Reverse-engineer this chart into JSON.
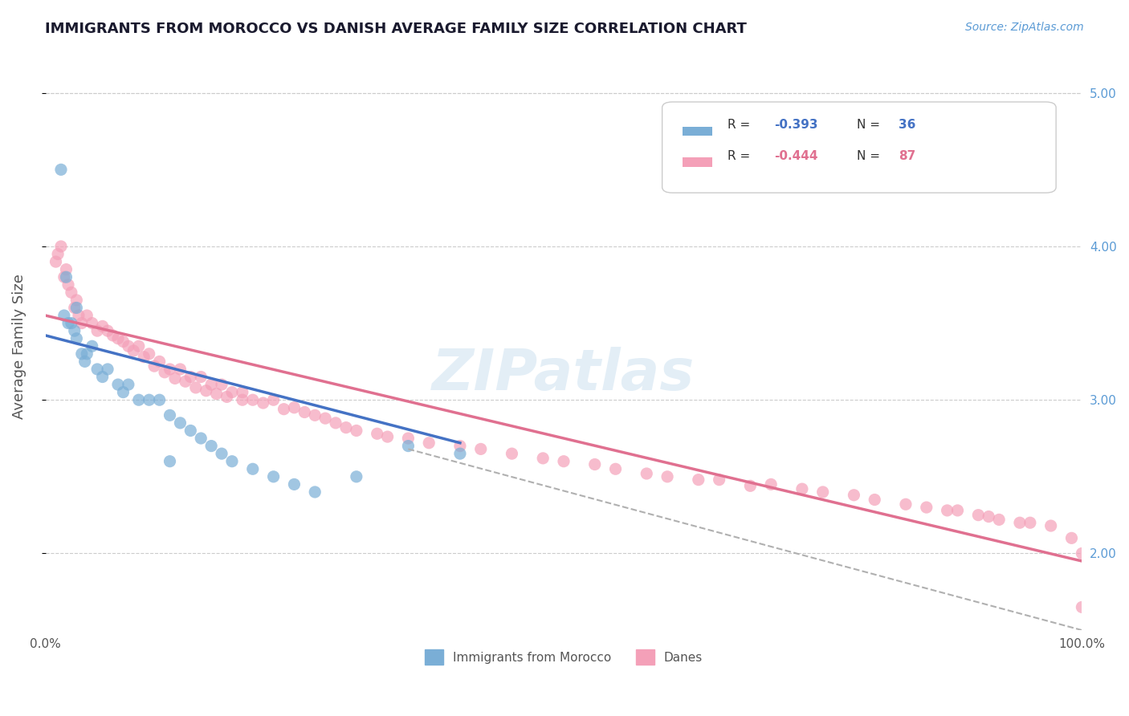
{
  "title": "IMMIGRANTS FROM MOROCCO VS DANISH AVERAGE FAMILY SIZE CORRELATION CHART",
  "source_text": "Source: ZipAtlas.com",
  "ylabel": "Average Family Size",
  "xlabel": "",
  "xlim": [
    0.0,
    100.0
  ],
  "ylim": [
    1.5,
    5.2
  ],
  "yticks": [
    2.0,
    3.0,
    4.0,
    5.0
  ],
  "xtick_labels": [
    "0.0%",
    "100.0%"
  ],
  "legend_entries": [
    {
      "label": "R = -0.393   N = 36",
      "color": "#aec6e8"
    },
    {
      "label": "R = -0.444   N = 87",
      "color": "#f4b8c8"
    }
  ],
  "legend_r_values": [
    "-0.393",
    "-0.444"
  ],
  "legend_n_values": [
    "36",
    "87"
  ],
  "watermark": "ZIPatlas",
  "blue_color": "#7aaed6",
  "pink_color": "#f4a0b8",
  "blue_line_color": "#4472c4",
  "pink_line_color": "#e07090",
  "dashed_line_color": "#b0b0b0",
  "title_color": "#1a1a2e",
  "axis_label_color": "#555555",
  "right_tick_color": "#5b9bd5",
  "background_color": "#ffffff",
  "grid_color": "#cccccc",
  "blue_scatter_x": [
    1.5,
    2.0,
    2.5,
    3.0,
    3.5,
    4.0,
    5.0,
    6.0,
    7.0,
    8.0,
    9.0,
    10.0,
    11.0,
    12.0,
    13.0,
    14.0,
    15.0,
    16.0,
    17.0,
    18.0,
    20.0,
    22.0,
    24.0,
    26.0,
    30.0,
    35.0,
    40.0,
    3.0,
    4.5,
    2.2,
    1.8,
    2.8,
    3.8,
    5.5,
    7.5,
    12.0
  ],
  "blue_scatter_y": [
    4.5,
    3.8,
    3.5,
    3.4,
    3.3,
    3.3,
    3.2,
    3.2,
    3.1,
    3.1,
    3.0,
    3.0,
    3.0,
    2.9,
    2.85,
    2.8,
    2.75,
    2.7,
    2.65,
    2.6,
    2.55,
    2.5,
    2.45,
    2.4,
    2.5,
    2.7,
    2.65,
    3.6,
    3.35,
    3.5,
    3.55,
    3.45,
    3.25,
    3.15,
    3.05,
    2.6
  ],
  "pink_scatter_x": [
    1.0,
    1.5,
    2.0,
    2.5,
    3.0,
    3.5,
    4.0,
    5.0,
    6.0,
    7.0,
    8.0,
    9.0,
    10.0,
    11.0,
    12.0,
    13.0,
    14.0,
    15.0,
    16.0,
    17.0,
    18.0,
    19.0,
    20.0,
    22.0,
    24.0,
    26.0,
    28.0,
    30.0,
    32.0,
    35.0,
    40.0,
    45.0,
    50.0,
    55.0,
    60.0,
    65.0,
    70.0,
    75.0,
    80.0,
    85.0,
    88.0,
    90.0,
    92.0,
    95.0,
    1.2,
    1.8,
    2.2,
    2.8,
    3.2,
    4.5,
    5.5,
    6.5,
    7.5,
    8.5,
    9.5,
    10.5,
    11.5,
    12.5,
    13.5,
    14.5,
    15.5,
    16.5,
    17.5,
    19.0,
    21.0,
    23.0,
    25.0,
    27.0,
    29.0,
    33.0,
    37.0,
    42.0,
    48.0,
    53.0,
    58.0,
    63.0,
    68.0,
    73.0,
    78.0,
    83.0,
    87.0,
    91.0,
    94.0,
    97.0,
    99.0,
    100.0,
    100.0
  ],
  "pink_scatter_y": [
    3.9,
    4.0,
    3.85,
    3.7,
    3.65,
    3.5,
    3.55,
    3.45,
    3.45,
    3.4,
    3.35,
    3.35,
    3.3,
    3.25,
    3.2,
    3.2,
    3.15,
    3.15,
    3.1,
    3.1,
    3.05,
    3.05,
    3.0,
    3.0,
    2.95,
    2.9,
    2.85,
    2.8,
    2.78,
    2.75,
    2.7,
    2.65,
    2.6,
    2.55,
    2.5,
    2.48,
    2.45,
    2.4,
    2.35,
    2.3,
    2.28,
    2.25,
    2.22,
    2.2,
    3.95,
    3.8,
    3.75,
    3.6,
    3.55,
    3.5,
    3.48,
    3.42,
    3.38,
    3.32,
    3.28,
    3.22,
    3.18,
    3.14,
    3.12,
    3.08,
    3.06,
    3.04,
    3.02,
    3.0,
    2.98,
    2.94,
    2.92,
    2.88,
    2.82,
    2.76,
    2.72,
    2.68,
    2.62,
    2.58,
    2.52,
    2.48,
    2.44,
    2.42,
    2.38,
    2.32,
    2.28,
    2.24,
    2.2,
    2.18,
    2.1,
    2.0,
    1.65
  ],
  "blue_line_x": [
    0,
    40
  ],
  "blue_line_y": [
    3.42,
    2.72
  ],
  "pink_line_x": [
    0,
    100
  ],
  "pink_line_y": [
    3.55,
    1.95
  ],
  "dashed_line_x": [
    35,
    100
  ],
  "dashed_line_y": [
    2.68,
    1.5
  ]
}
